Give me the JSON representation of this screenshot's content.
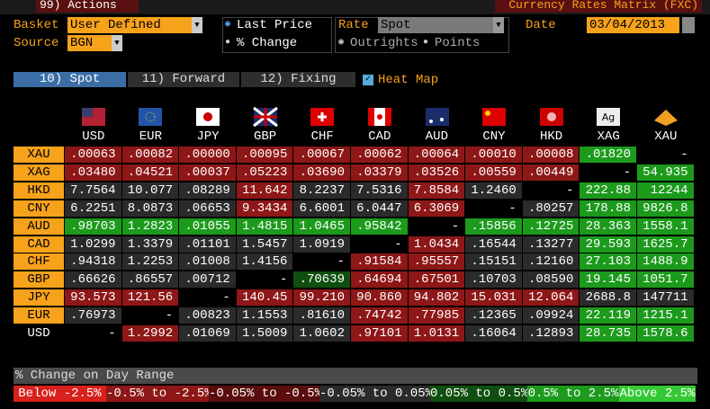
{
  "toolbar": {
    "actions": "99) Actions",
    "title": "Currency Rates Matrix (FXC)"
  },
  "controls": {
    "basket_label": "Basket",
    "basket": "User Defined",
    "source_label": "Source",
    "source": "BGN",
    "last_price": "Last Price",
    "pct_change": "% Change",
    "rate_label": "Rate",
    "rate": "Spot",
    "outrights": "Outrights",
    "points": "Points",
    "date_label": "Date",
    "date": "03/04/2013"
  },
  "tabs": [
    "10) Spot",
    "11) Forward",
    "12) Fixing"
  ],
  "heat_map": "Heat Map",
  "table": {
    "columns": [
      "USD",
      "EUR",
      "JPY",
      "GBP",
      "CHF",
      "CAD",
      "AUD",
      "CNY",
      "HKD",
      "XAG",
      "XAU"
    ],
    "rows": [
      {
        "label": "XAU",
        "label_color": "#f7a21b",
        "values": [
          ".00063",
          ".00082",
          ".00000",
          ".00095",
          ".00067",
          ".00062",
          ".00064",
          ".00010",
          ".00008",
          ".01820",
          "-"
        ],
        "colors": [
          "#8e1717",
          "#8e1717",
          "#8e1717",
          "#8e1717",
          "#8e1717",
          "#8e1717",
          "#8e1717",
          "#8e1717",
          "#8e1717",
          "#1c9a1c",
          "#000000"
        ]
      },
      {
        "label": "XAG",
        "label_color": "#f7a21b",
        "values": [
          ".03480",
          ".04521",
          ".00037",
          ".05223",
          ".03690",
          ".03379",
          ".03526",
          ".00559",
          ".00449",
          "-",
          "54.935"
        ],
        "colors": [
          "#8e1717",
          "#8e1717",
          "#8e1717",
          "#8e1717",
          "#8e1717",
          "#8e1717",
          "#8e1717",
          "#8e1717",
          "#8e1717",
          "#000000",
          "#1c9a1c"
        ]
      },
      {
        "label": "HKD",
        "label_color": "#f7a21b",
        "values": [
          "7.7564",
          "10.077",
          ".08289",
          "11.642",
          "8.2237",
          "7.5316",
          "7.8584",
          "1.2460",
          "-",
          "222.88",
          "12244"
        ],
        "colors": [
          "#2b2b2b",
          "#2b2b2b",
          "#2b2b2b",
          "#8e1717",
          "#2b2b2b",
          "#2b2b2b",
          "#8e1717",
          "#2b2b2b",
          "#000000",
          "#1c9a1c",
          "#1c9a1c"
        ]
      },
      {
        "label": "CNY",
        "label_color": "#f7a21b",
        "values": [
          "6.2251",
          "8.0873",
          ".06653",
          "9.3434",
          "6.6001",
          "6.0447",
          "6.3069",
          "-",
          ".80257",
          "178.88",
          "9826.8"
        ],
        "colors": [
          "#2b2b2b",
          "#2b2b2b",
          "#2b2b2b",
          "#8e1717",
          "#2b2b2b",
          "#2b2b2b",
          "#8e1717",
          "#000000",
          "#2b2b2b",
          "#1c9a1c",
          "#1c9a1c"
        ]
      },
      {
        "label": "AUD",
        "label_color": "#f7a21b",
        "values": [
          ".98703",
          "1.2823",
          ".01055",
          "1.4815",
          "1.0465",
          ".95842",
          "-",
          ".15856",
          ".12725",
          "28.363",
          "1558.1"
        ],
        "colors": [
          "#1c9a1c",
          "#1c9a1c",
          "#1c9a1c",
          "#1c9a1c",
          "#1c9a1c",
          "#1c9a1c",
          "#000000",
          "#1c9a1c",
          "#1c9a1c",
          "#1c9a1c",
          "#1c9a1c"
        ]
      },
      {
        "label": "CAD",
        "label_color": "#f7a21b",
        "values": [
          "1.0299",
          "1.3379",
          ".01101",
          "1.5457",
          "1.0919",
          "-",
          "1.0434",
          ".16544",
          ".13277",
          "29.593",
          "1625.7"
        ],
        "colors": [
          "#2b2b2b",
          "#2b2b2b",
          "#2b2b2b",
          "#2b2b2b",
          "#2b2b2b",
          "#000000",
          "#8e1717",
          "#2b2b2b",
          "#2b2b2b",
          "#1c9a1c",
          "#1c9a1c"
        ]
      },
      {
        "label": "CHF",
        "label_color": "#f7a21b",
        "values": [
          ".94318",
          "1.2253",
          ".01008",
          "1.4156",
          "-",
          ".91584",
          ".95557",
          ".15151",
          ".12160",
          "27.103",
          "1488.9"
        ],
        "colors": [
          "#2b2b2b",
          "#2b2b2b",
          "#2b2b2b",
          "#2b2b2b",
          "#000000",
          "#8e1717",
          "#8e1717",
          "#2b2b2b",
          "#2b2b2b",
          "#1c9a1c",
          "#1c9a1c"
        ]
      },
      {
        "label": "GBP",
        "label_color": "#f7a21b",
        "values": [
          ".66626",
          ".86557",
          ".00712",
          "-",
          ".70639",
          ".64694",
          ".67501",
          ".10703",
          ".08590",
          "19.145",
          "1051.7"
        ],
        "colors": [
          "#2b2b2b",
          "#2b2b2b",
          "#2b2b2b",
          "#000000",
          "#0f4f0f",
          "#8e1717",
          "#8e1717",
          "#2b2b2b",
          "#2b2b2b",
          "#1c9a1c",
          "#1c9a1c"
        ]
      },
      {
        "label": "JPY",
        "label_color": "#f7a21b",
        "values": [
          "93.573",
          "121.56",
          "-",
          "140.45",
          "99.210",
          "90.860",
          "94.802",
          "15.031",
          "12.064",
          "2688.8",
          "147711"
        ],
        "colors": [
          "#8e1717",
          "#8e1717",
          "#000000",
          "#8e1717",
          "#8e1717",
          "#8e1717",
          "#8e1717",
          "#8e1717",
          "#8e1717",
          "#2b2b2b",
          "#2b2b2b"
        ]
      },
      {
        "label": "EUR",
        "label_color": "#f7a21b",
        "values": [
          ".76973",
          "-",
          ".00823",
          "1.1553",
          ".81610",
          ".74742",
          ".77985",
          ".12365",
          ".09924",
          "22.119",
          "1215.1"
        ],
        "colors": [
          "#2b2b2b",
          "#000000",
          "#2b2b2b",
          "#2b2b2b",
          "#2b2b2b",
          "#8e1717",
          "#8e1717",
          "#2b2b2b",
          "#2b2b2b",
          "#1c9a1c",
          "#1c9a1c"
        ]
      },
      {
        "label": "USD",
        "label_color": "#000000",
        "values": [
          "-",
          "1.2992",
          ".01069",
          "1.5009",
          "1.0602",
          ".97101",
          "1.0131",
          ".16064",
          ".12893",
          "28.735",
          "1578.6"
        ],
        "colors": [
          "#000000",
          "#8e1717",
          "#2b2b2b",
          "#2b2b2b",
          "#2b2b2b",
          "#8e1717",
          "#8e1717",
          "#2b2b2b",
          "#2b2b2b",
          "#1c9a1c",
          "#1c9a1c"
        ]
      }
    ]
  },
  "legend": {
    "title": "% Change on Day Range",
    "items": [
      {
        "label": "Below -2.5%",
        "color": "#d8201c"
      },
      {
        "label": "-0.5% to -2.5%",
        "color": "#8e1717"
      },
      {
        "label": "-0.05% to -0.5%",
        "color": "#5a0d0d"
      },
      {
        "label": "-0.05% to 0.05%",
        "color": "#2b2b2b"
      },
      {
        "label": "0.05% to 0.5%",
        "color": "#0f4f0f"
      },
      {
        "label": "0.5% to 2.5%",
        "color": "#1c9a1c"
      },
      {
        "label": "Above 2.5%",
        "color": "#34c934"
      }
    ]
  }
}
